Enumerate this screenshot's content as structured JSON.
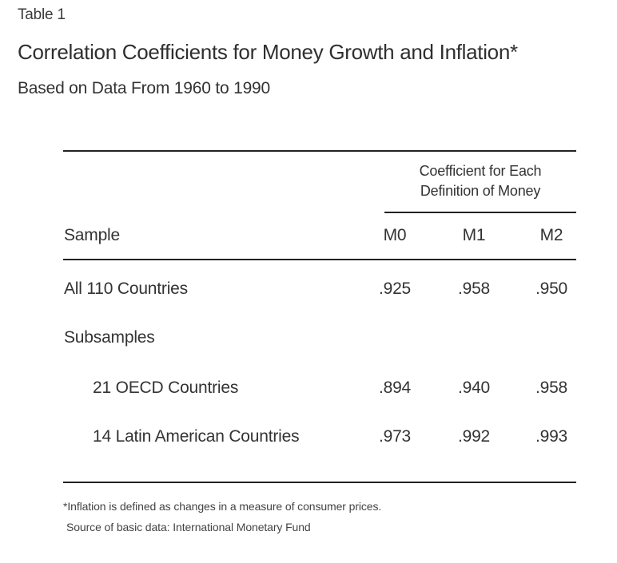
{
  "table_label": "Table 1",
  "title": "Correlation Coefficients for Money Growth and Inflation*",
  "subtitle": "Based on Data From 1960 to 1990",
  "group_header": {
    "line1": "Coefficient for Each",
    "line2": "Definition of Money"
  },
  "columns": {
    "sample": "Sample",
    "m0": "M0",
    "m1": "M1",
    "m2": "M2"
  },
  "rows": [
    {
      "label": "All 110 Countries",
      "m0": ".925",
      "m1": ".958",
      "m2": ".950"
    },
    {
      "label": "Subsamples",
      "m0": "",
      "m1": "",
      "m2": ""
    },
    {
      "label": "21 OECD Countries",
      "m0": ".894",
      "m1": ".940",
      "m2": ".958"
    },
    {
      "label": "14 Latin American Countries",
      "m0": ".973",
      "m1": ".992",
      "m2": ".993"
    }
  ],
  "footnotes": {
    "note": "*Inflation is defined as changes in a measure of consumer prices.",
    "source": "Source of basic data: International Monetary Fund"
  }
}
